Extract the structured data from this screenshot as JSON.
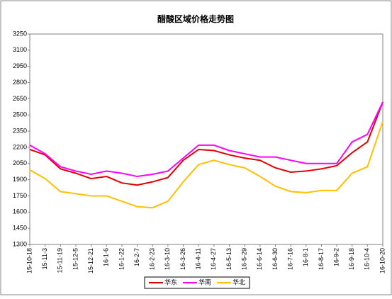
{
  "chart_data": {
    "type": "line",
    "title": "醋酸区域价格走势图",
    "categories": [
      "15-10-18",
      "15-11-3",
      "15-11-19",
      "15-12-5",
      "15-12-21",
      "16-1-6",
      "16-1-22",
      "16-2-7",
      "16-2-23",
      "16-3-10",
      "16-3-26",
      "16-4-11",
      "16-4-27",
      "16-5-13",
      "16-5-29",
      "16-6-14",
      "16-6-30",
      "16-7-16",
      "16-8-1",
      "16-8-17",
      "16-9-2",
      "16-9-18",
      "16-10-4",
      "16-10-20"
    ],
    "series": [
      {
        "name": "华东",
        "color": "#e00000",
        "values": [
          2180,
          2130,
          2000,
          1960,
          1910,
          1930,
          1870,
          1850,
          1880,
          1920,
          2080,
          2180,
          2170,
          2130,
          2100,
          2080,
          2010,
          1970,
          1980,
          2000,
          2030,
          2150,
          2250,
          2620
        ]
      },
      {
        "name": "华南",
        "color": "#ff00ff",
        "values": [
          2220,
          2140,
          2020,
          1980,
          1950,
          1980,
          1960,
          1930,
          1950,
          1980,
          2100,
          2220,
          2220,
          2170,
          2140,
          2110,
          2110,
          2080,
          2050,
          2050,
          2050,
          2250,
          2320,
          2620
        ]
      },
      {
        "name": "华北",
        "color": "#ffc000",
        "values": [
          1990,
          1910,
          1790,
          1770,
          1750,
          1750,
          1700,
          1650,
          1640,
          1700,
          1880,
          2040,
          2080,
          2040,
          2010,
          1930,
          1840,
          1790,
          1780,
          1800,
          1800,
          1960,
          2020,
          2440
        ]
      }
    ],
    "ylim": [
      1300,
      3250
    ],
    "yticks": [
      1300,
      1450,
      1600,
      1750,
      1900,
      2050,
      2200,
      2350,
      2500,
      2650,
      2800,
      2950,
      3100,
      3250
    ]
  }
}
